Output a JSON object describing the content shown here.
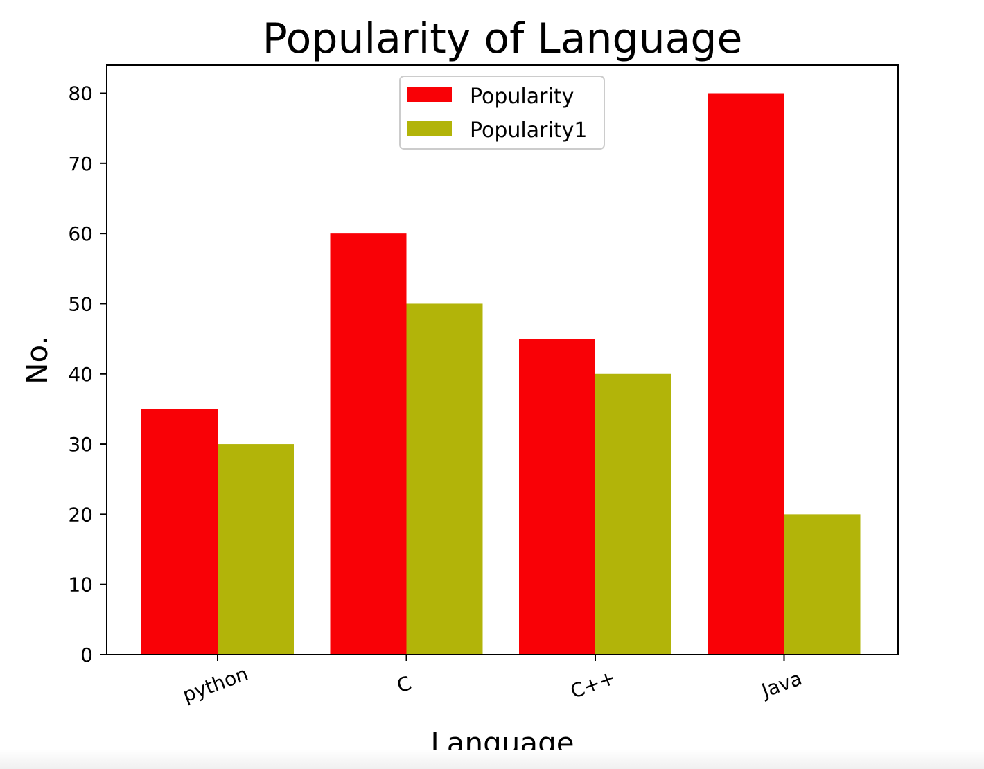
{
  "chart_data": {
    "type": "bar",
    "title": "Popularity of Language",
    "xlabel": "Language",
    "ylabel": "No.",
    "categories": [
      "python",
      "C",
      "C++",
      "Java"
    ],
    "series": [
      {
        "name": "Popularity",
        "values": [
          35,
          60,
          45,
          80
        ],
        "color": "#f90106"
      },
      {
        "name": "Popularity1",
        "values": [
          30,
          50,
          40,
          20
        ],
        "color": "#b2b409"
      }
    ],
    "ylim": [
      0,
      84
    ],
    "yticks": [
      0,
      10,
      20,
      30,
      40,
      50,
      60,
      70,
      80
    ],
    "grid": false,
    "legend_position": "top-center"
  }
}
